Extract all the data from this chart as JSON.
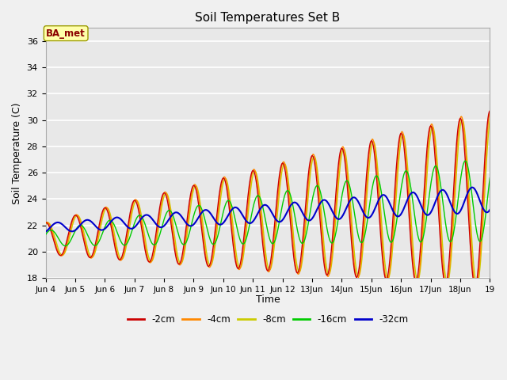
{
  "title": "Soil Temperatures Set B",
  "xlabel": "Time",
  "ylabel": "Soil Temperature (C)",
  "ylim": [
    18,
    37
  ],
  "xlim": [
    0,
    360
  ],
  "annotation": "BA_met",
  "colors": {
    "-2cm": "#cc0000",
    "-4cm": "#ff8800",
    "-8cm": "#cccc00",
    "-16cm": "#00cc00",
    "-32cm": "#0000cc"
  },
  "legend_labels": [
    "-2cm",
    "-4cm",
    "-8cm",
    "-16cm",
    "-32cm"
  ],
  "tick_positions": [
    0,
    24,
    48,
    72,
    96,
    120,
    144,
    168,
    192,
    216,
    240,
    264,
    288,
    312,
    336,
    360
  ],
  "tick_labels": [
    "Jun 4",
    "Jun 5",
    "Jun 6",
    "Jun 7",
    "Jun 8",
    "Jun 9",
    "Jun 10",
    "Jun 11",
    "Jun 12",
    "13Jun",
    "14Jun",
    "15Jun",
    "16Jun",
    "17Jun",
    "18Jun",
    "19"
  ],
  "ytick_positions": [
    18,
    20,
    22,
    24,
    26,
    28,
    30,
    32,
    34,
    36
  ],
  "background_color": "#e8e8e8",
  "fig_color": "#f0f0f0"
}
